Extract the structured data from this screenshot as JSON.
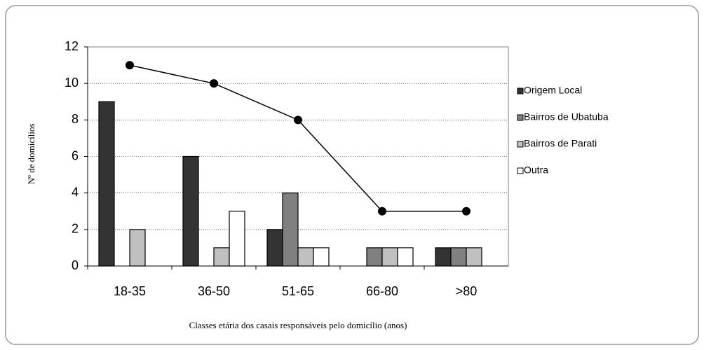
{
  "chart_data": {
    "type": "bar",
    "x_label": "Classes etária dos casais responsáveis pelo domicílio (anos)",
    "y_label": "Nº de domicílios",
    "categories": [
      "18-35",
      "36-50",
      "51-65",
      "66-80",
      ">80"
    ],
    "series": [
      {
        "name": "Origem Local",
        "color": "#333333",
        "values": [
          9,
          6,
          2,
          0,
          1
        ]
      },
      {
        "name": "Bairros de Ubatuba",
        "color": "#808080",
        "values": [
          0,
          0,
          4,
          1,
          1
        ]
      },
      {
        "name": "Bairros de Parati",
        "color": "#c0c0c0",
        "values": [
          2,
          1,
          1,
          1,
          1
        ]
      },
      {
        "name": "Outra",
        "color": "#ffffff",
        "values": [
          0,
          3,
          1,
          1,
          0
        ]
      }
    ],
    "line": {
      "type": "line",
      "color": "#000000",
      "values": [
        11,
        10,
        8,
        3,
        3
      ]
    },
    "ylim": [
      0,
      12
    ],
    "yticks": [
      0,
      2,
      4,
      6,
      8,
      10,
      12
    ],
    "grid": true,
    "legend": "right"
  }
}
